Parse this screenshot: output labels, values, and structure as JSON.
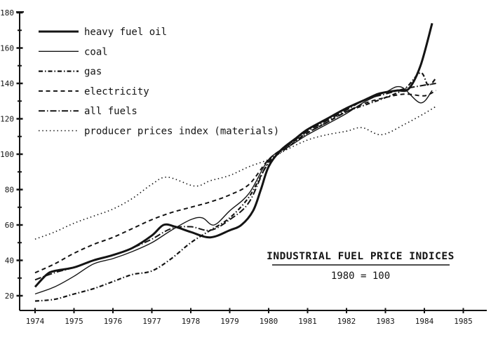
{
  "figure": {
    "background": "#ffffff",
    "ink_color": "#141414"
  },
  "title_box": {
    "title": "INDUSTRIAL FUEL PRICE INDICES",
    "subtitle": "1980 = 100"
  },
  "axes": {
    "x_tick_labels": [
      "1974",
      "1975",
      "1976",
      "1977",
      "1978",
      "1979",
      "1980",
      "1981",
      "1982",
      "1983",
      "1984",
      "1985"
    ],
    "y_tick_labels": [
      "20",
      "40",
      "60",
      "80",
      "100",
      "120",
      "140",
      "160",
      "180"
    ]
  },
  "legend": {
    "entries": [
      "heavy fuel oil",
      "coal",
      "gas",
      "electricity",
      "all fuels",
      "producer prices index (materials)"
    ]
  },
  "chart_data": {
    "type": "line",
    "title": "INDUSTRIAL FUEL PRICE INDICES",
    "subtitle": "1980 = 100",
    "xlabel": "",
    "ylabel": "",
    "xlim": [
      1973.6,
      1985.6
    ],
    "ylim": [
      10,
      180
    ],
    "x_ticks": [
      1974,
      1975,
      1976,
      1977,
      1978,
      1979,
      1980,
      1981,
      1982,
      1983,
      1984,
      1985
    ],
    "y_ticks_major": [
      20,
      40,
      60,
      80,
      100,
      120,
      140,
      160,
      180
    ],
    "y_minor_step": 10,
    "grid": false,
    "legend_position": "top-left",
    "series": [
      {
        "name": "heavy fuel oil",
        "style": "solid-thick",
        "x": [
          1974,
          1974.3,
          1974.5,
          1975,
          1975.5,
          1976,
          1976.5,
          1977,
          1977.3,
          1977.6,
          1978,
          1978.5,
          1979,
          1979.3,
          1979.6,
          1979.8,
          1980,
          1980.3,
          1980.7,
          1981,
          1981.5,
          1982,
          1982.5,
          1982.8,
          1983,
          1983.3,
          1983.6,
          1983.9,
          1984.2
        ],
        "y": [
          25,
          32,
          34,
          36,
          40,
          43,
          47,
          54,
          60,
          59,
          56,
          53,
          57,
          60,
          68,
          80,
          93,
          102,
          109,
          114,
          120,
          126,
          131,
          134,
          135,
          136,
          137,
          150,
          174
        ]
      },
      {
        "name": "coal",
        "style": "solid-thin",
        "x": [
          1974,
          1974.5,
          1975,
          1975.5,
          1976,
          1976.5,
          1977,
          1977.5,
          1978,
          1978.3,
          1978.6,
          1979,
          1979.5,
          1980,
          1980.5,
          1981,
          1981.5,
          1982,
          1982.5,
          1983,
          1983.4,
          1983.9,
          1984.2
        ],
        "y": [
          21,
          25,
          31,
          38,
          41,
          45,
          50,
          57,
          63,
          64,
          60,
          68,
          78,
          97,
          104,
          111,
          117,
          123,
          130,
          135,
          138,
          129,
          136
        ]
      },
      {
        "name": "gas",
        "style": "dash-dot-heavy",
        "x": [
          1974,
          1974.5,
          1975,
          1975.5,
          1976,
          1976.5,
          1977,
          1977.5,
          1978,
          1978.5,
          1979,
          1979.5,
          1980,
          1980.5,
          1981,
          1981.5,
          1982,
          1982.5,
          1983,
          1983.5,
          1983.9,
          1984.1,
          1984.3
        ],
        "y": [
          17,
          18,
          21,
          24,
          28,
          32,
          34,
          41,
          50,
          57,
          64,
          76,
          95,
          104,
          112,
          118,
          124,
          128,
          132,
          137,
          146,
          139,
          143
        ]
      },
      {
        "name": "electricity",
        "style": "dashed",
        "x": [
          1974,
          1974.5,
          1975,
          1975.5,
          1976,
          1976.5,
          1977,
          1977.5,
          1978,
          1978.5,
          1979,
          1979.5,
          1980,
          1980.5,
          1981,
          1981.5,
          1982,
          1982.5,
          1983,
          1983.5,
          1984,
          1984.3
        ],
        "y": [
          33,
          38,
          44,
          49,
          53,
          58,
          63,
          67,
          70,
          73,
          77,
          83,
          97,
          105,
          112,
          118,
          124,
          129,
          132,
          134,
          133,
          136
        ]
      },
      {
        "name": "all fuels",
        "style": "dash-dot",
        "x": [
          1974,
          1974.5,
          1975,
          1975.5,
          1976,
          1976.5,
          1977,
          1977.5,
          1978,
          1978.5,
          1979,
          1979.5,
          1980,
          1980.5,
          1981,
          1981.5,
          1982,
          1982.5,
          1983,
          1983.5,
          1984,
          1984.3
        ],
        "y": [
          29,
          33,
          36,
          40,
          43,
          47,
          52,
          58,
          59,
          57,
          63,
          73,
          96,
          105,
          113,
          119,
          125,
          131,
          134,
          137,
          139,
          140
        ]
      },
      {
        "name": "producer prices index (materials)",
        "style": "dotted",
        "x": [
          1974,
          1974.5,
          1975,
          1975.5,
          1976,
          1976.5,
          1977,
          1977.4,
          1978.1,
          1978.5,
          1979,
          1979.5,
          1980,
          1980.5,
          1981,
          1981.5,
          1982,
          1982.4,
          1982.9,
          1983.5,
          1984,
          1984.3
        ],
        "y": [
          52,
          56,
          61,
          65,
          69,
          75,
          83,
          87,
          82,
          85,
          88,
          93,
          97,
          103,
          108,
          111,
          113,
          115,
          111,
          117,
          123,
          127
        ]
      }
    ]
  }
}
